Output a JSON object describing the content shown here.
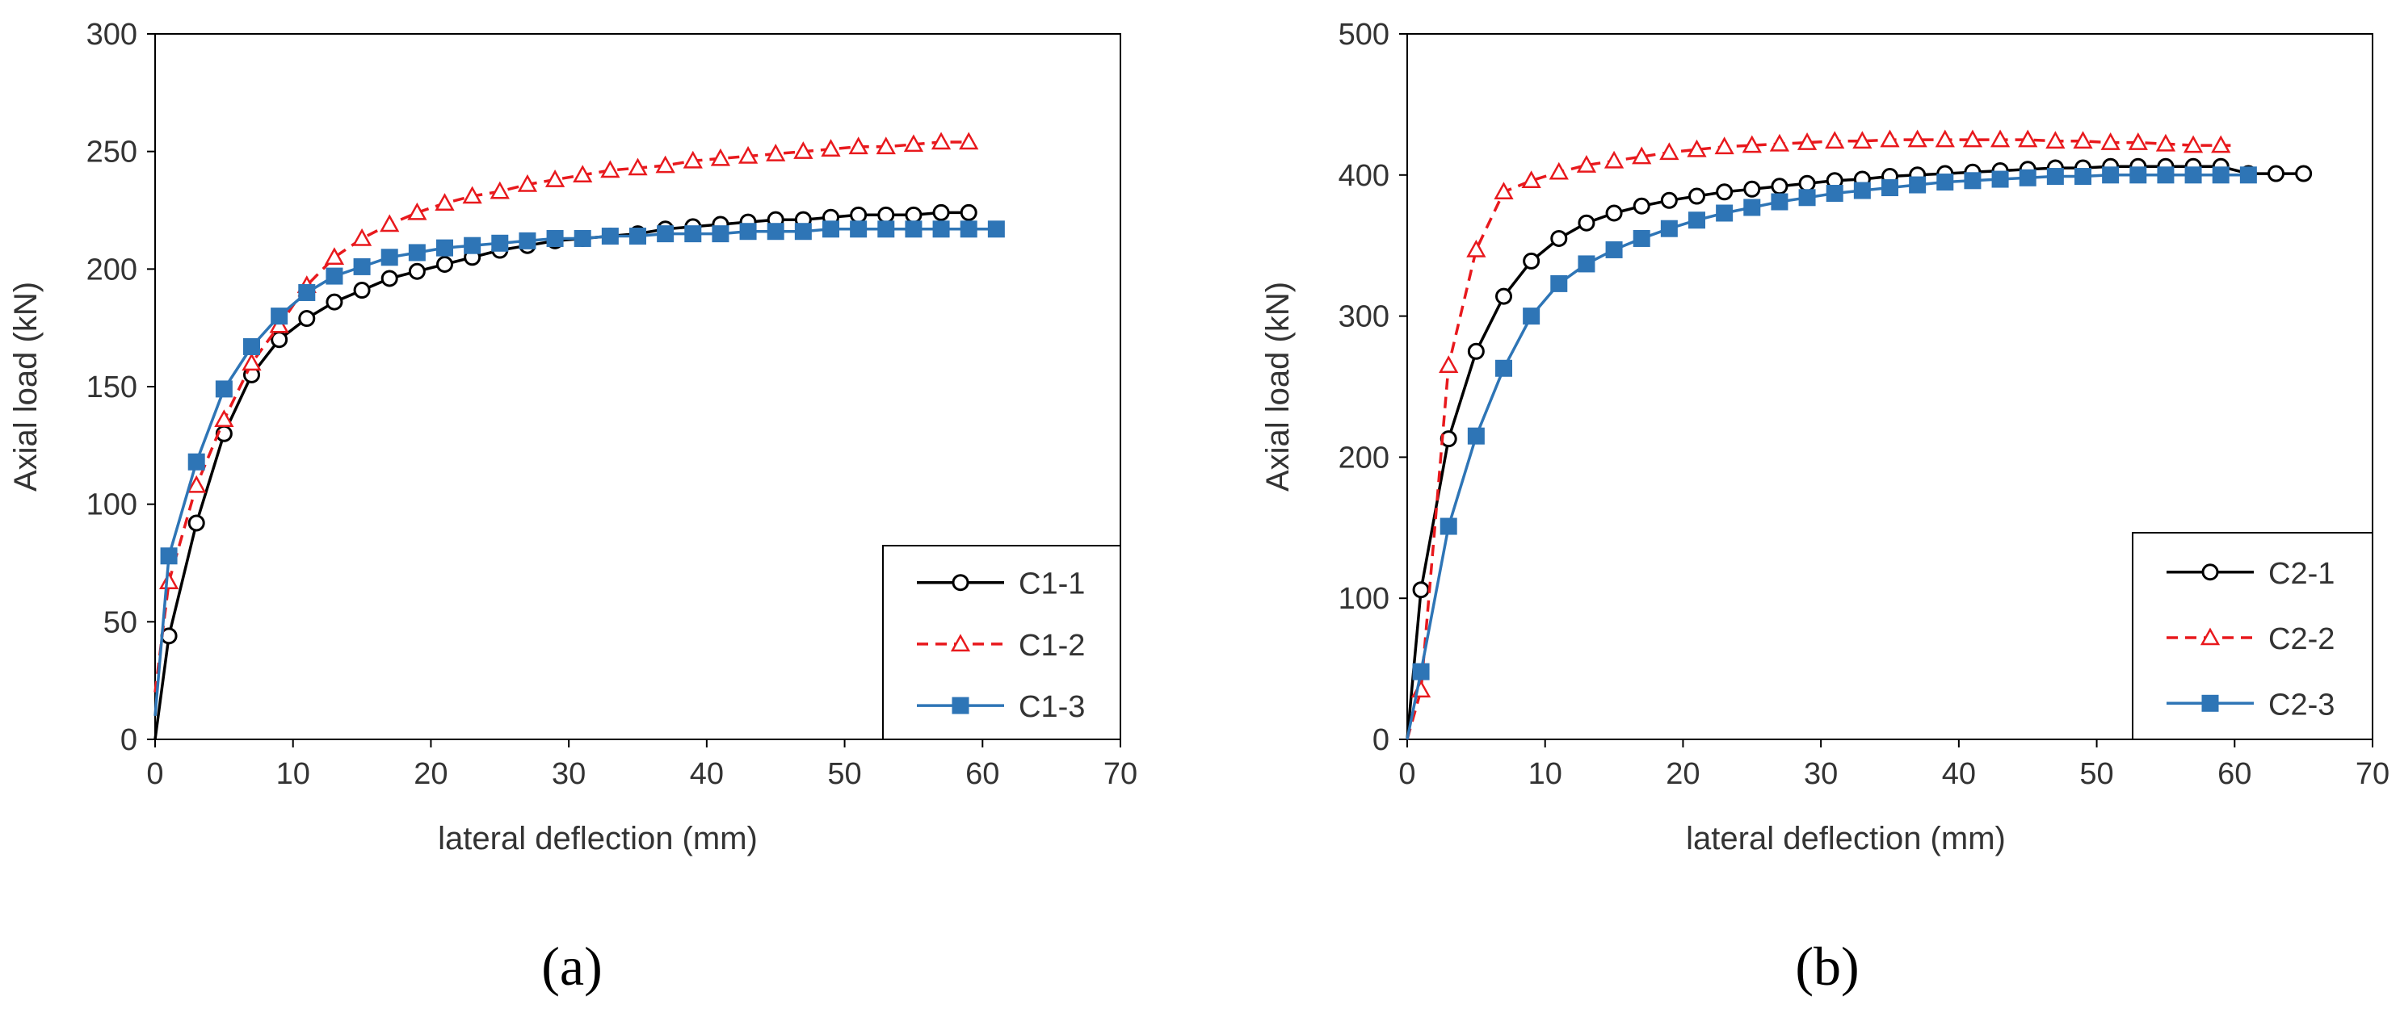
{
  "chart_data": [
    {
      "type": "line",
      "panel_label": "(a)",
      "xlabel": "lateral deflection (mm)",
      "ylabel": "Axial load (kN)",
      "xlim": [
        0,
        70
      ],
      "ylim": [
        0,
        300
      ],
      "xticks": [
        0,
        10,
        20,
        30,
        40,
        50,
        60,
        70
      ],
      "yticks": [
        0,
        50,
        100,
        150,
        200,
        250,
        300
      ],
      "grid": false,
      "legend": "bottom-right",
      "series": [
        {
          "name": "C1-1",
          "color": "#000000",
          "line": "solid",
          "marker": "circle-open",
          "x": [
            0,
            1,
            3,
            5,
            7,
            9,
            11,
            13,
            15,
            17,
            19,
            21,
            23,
            25,
            27,
            29,
            31,
            33,
            35,
            37,
            39,
            41,
            43,
            45,
            47,
            49,
            51,
            53,
            55,
            57,
            59
          ],
          "y": [
            0,
            44,
            92,
            130,
            155,
            170,
            179,
            186,
            191,
            196,
            199,
            202,
            205,
            208,
            210,
            212,
            213,
            214,
            215,
            217,
            218,
            219,
            220,
            221,
            221,
            222,
            223,
            223,
            223,
            224,
            224
          ],
          "marker_x": [
            1,
            3,
            5,
            7,
            9,
            11,
            13,
            15,
            17,
            19,
            21,
            23,
            25,
            27,
            29,
            31,
            33,
            35,
            37,
            39,
            41,
            43,
            45,
            47,
            49,
            51,
            53,
            55,
            57,
            59
          ]
        },
        {
          "name": "C1-2",
          "color": "#e8191d",
          "line": "dashed",
          "marker": "triangle-open",
          "x": [
            0,
            1,
            3,
            5,
            7,
            9,
            11,
            13,
            15,
            17,
            19,
            21,
            23,
            25,
            27,
            29,
            31,
            33,
            35,
            37,
            39,
            41,
            43,
            45,
            47,
            49,
            51,
            53,
            55,
            57,
            59
          ],
          "y": [
            20,
            67,
            108,
            136,
            160,
            176,
            193,
            205,
            213,
            219,
            224,
            228,
            231,
            233,
            236,
            238,
            240,
            242,
            243,
            244,
            246,
            247,
            248,
            249,
            250,
            251,
            252,
            252,
            253,
            254,
            254
          ],
          "marker_x": [
            1,
            3,
            5,
            7,
            9,
            11,
            13,
            15,
            17,
            19,
            21,
            23,
            25,
            27,
            29,
            31,
            33,
            35,
            37,
            39,
            41,
            43,
            45,
            47,
            49,
            51,
            53,
            55,
            57,
            59
          ]
        },
        {
          "name": "C1-3",
          "color": "#2e75b6",
          "line": "solid",
          "marker": "square-filled",
          "x": [
            0,
            1,
            3,
            5,
            7,
            9,
            11,
            13,
            15,
            17,
            19,
            21,
            23,
            25,
            27,
            29,
            31,
            33,
            35,
            37,
            39,
            41,
            43,
            45,
            47,
            49,
            51,
            53,
            55,
            57,
            59,
            61
          ],
          "y": [
            10,
            78,
            118,
            149,
            167,
            180,
            190,
            197,
            201,
            205,
            207,
            209,
            210,
            211,
            212,
            213,
            213,
            214,
            214,
            215,
            215,
            215,
            216,
            216,
            216,
            217,
            217,
            217,
            217,
            217,
            217,
            217
          ],
          "marker_x": [
            1,
            3,
            5,
            7,
            9,
            11,
            13,
            15,
            17,
            19,
            21,
            23,
            25,
            27,
            29,
            31,
            33,
            35,
            37,
            39,
            41,
            43,
            45,
            47,
            49,
            51,
            53,
            55,
            57,
            59,
            61
          ]
        }
      ]
    },
    {
      "type": "line",
      "panel_label": "(b)",
      "xlabel": "lateral deflection (mm)",
      "ylabel": "Axial load (kN)",
      "xlim": [
        0,
        70
      ],
      "ylim": [
        0,
        500
      ],
      "xticks": [
        0,
        10,
        20,
        30,
        40,
        50,
        60,
        70
      ],
      "yticks": [
        0,
        100,
        200,
        300,
        400,
        500
      ],
      "grid": false,
      "legend": "bottom-right",
      "series": [
        {
          "name": "C2-1",
          "color": "#000000",
          "line": "solid",
          "marker": "circle-open",
          "x": [
            0,
            1,
            3,
            5,
            7,
            9,
            11,
            13,
            15,
            17,
            19,
            21,
            23,
            25,
            27,
            29,
            31,
            33,
            35,
            37,
            39,
            41,
            43,
            45,
            47,
            49,
            51,
            53,
            55,
            57,
            59,
            61,
            63,
            65
          ],
          "y": [
            0,
            106,
            213,
            275,
            314,
            339,
            355,
            366,
            373,
            378,
            382,
            385,
            388,
            390,
            392,
            394,
            396,
            397,
            399,
            400,
            401,
            402,
            403,
            404,
            405,
            405,
            406,
            406,
            406,
            406,
            406,
            401,
            401,
            401
          ],
          "marker_x": [
            1,
            3,
            5,
            7,
            9,
            11,
            13,
            15,
            17,
            19,
            21,
            23,
            25,
            27,
            29,
            31,
            33,
            35,
            37,
            39,
            41,
            43,
            45,
            47,
            49,
            51,
            53,
            55,
            57,
            59,
            61,
            63,
            65
          ]
        },
        {
          "name": "C2-2",
          "color": "#e8191d",
          "line": "dashed",
          "marker": "triangle-open",
          "x": [
            0,
            1,
            3,
            5,
            7,
            9,
            11,
            13,
            15,
            17,
            19,
            21,
            23,
            25,
            27,
            29,
            31,
            33,
            35,
            37,
            39,
            41,
            43,
            45,
            47,
            49,
            51,
            53,
            55,
            57,
            59,
            60
          ],
          "y": [
            0,
            35,
            265,
            347,
            388,
            396,
            402,
            407,
            410,
            413,
            416,
            418,
            420,
            421,
            422,
            423,
            424,
            424,
            425,
            425,
            425,
            425,
            425,
            425,
            424,
            424,
            423,
            423,
            422,
            421,
            421,
            421
          ],
          "marker_x": [
            1,
            3,
            5,
            7,
            9,
            11,
            13,
            15,
            17,
            19,
            21,
            23,
            25,
            27,
            29,
            31,
            33,
            35,
            37,
            39,
            41,
            43,
            45,
            47,
            49,
            51,
            53,
            55,
            57,
            59
          ]
        },
        {
          "name": "C2-3",
          "color": "#2e75b6",
          "line": "solid",
          "marker": "square-filled",
          "x": [
            0,
            1,
            3,
            5,
            7,
            9,
            11,
            13,
            15,
            17,
            19,
            21,
            23,
            25,
            27,
            29,
            31,
            33,
            35,
            37,
            39,
            41,
            43,
            45,
            47,
            49,
            51,
            53,
            55,
            57,
            59,
            61
          ],
          "y": [
            0,
            48,
            151,
            215,
            263,
            300,
            323,
            337,
            347,
            355,
            362,
            368,
            373,
            377,
            381,
            384,
            387,
            389,
            391,
            393,
            395,
            396,
            397,
            398,
            399,
            399,
            400,
            400,
            400,
            400,
            400,
            400
          ],
          "marker_x": [
            1,
            3,
            5,
            7,
            9,
            11,
            13,
            15,
            17,
            19,
            21,
            23,
            25,
            27,
            29,
            31,
            33,
            35,
            37,
            39,
            41,
            43,
            45,
            47,
            49,
            51,
            53,
            55,
            57,
            59,
            61
          ]
        }
      ]
    }
  ]
}
